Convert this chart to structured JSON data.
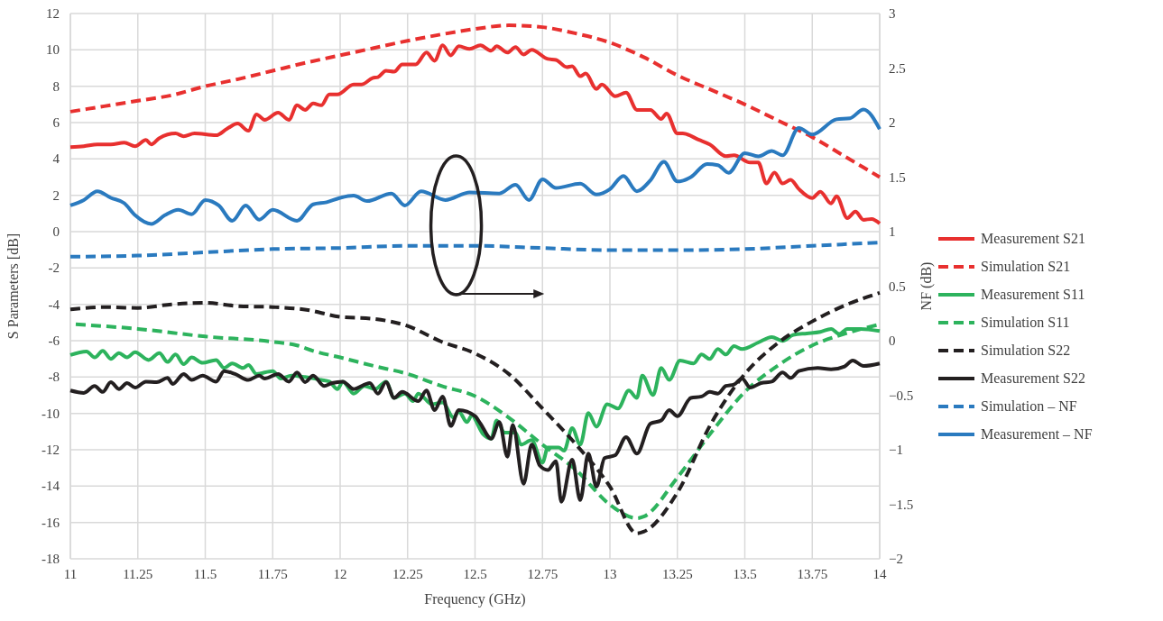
{
  "chart_data": {
    "type": "line",
    "xlabel": "Frequency (GHz)",
    "ylabel": "S Parameters [dB]",
    "y2label": "NF (dB)",
    "grid": true,
    "legend": "right",
    "xlim": [
      11,
      14
    ],
    "xticks": [
      11,
      11.25,
      11.5,
      11.75,
      12,
      12.25,
      12.5,
      12.75,
      13,
      13.25,
      13.5,
      13.75,
      14
    ],
    "ylim": [
      -18,
      12
    ],
    "yticks": [
      -18,
      -16,
      -14,
      -12,
      -10,
      -8,
      -6,
      -4,
      -2,
      0,
      2,
      4,
      6,
      8,
      10,
      12
    ],
    "y2lim": [
      -2,
      3
    ],
    "y2ticks": [
      {
        "value": -2,
        "label": "−2"
      },
      {
        "value": -1.5,
        "label": "−1.5"
      },
      {
        "value": -1,
        "label": "−1"
      },
      {
        "value": -0.5,
        "label": "−0.5"
      },
      0,
      0.5,
      1,
      1.5,
      2,
      2.5,
      3
    ],
    "series": [
      {
        "name": "Measurement S21",
        "color": "#e8302f",
        "line_style": "solid",
        "x": [
          11.0,
          11.05,
          11.1,
          11.15,
          11.2,
          11.24,
          11.28,
          11.3,
          11.33,
          11.39,
          11.42,
          11.46,
          11.54,
          11.58,
          11.62,
          11.66,
          11.69,
          11.72,
          11.77,
          11.81,
          11.84,
          11.87,
          11.9,
          11.93,
          11.96,
          11.99,
          12.05,
          12.08,
          12.12,
          12.14,
          12.17,
          12.2,
          12.23,
          12.28,
          12.32,
          12.35,
          12.38,
          12.41,
          12.44,
          12.48,
          12.52,
          12.56,
          12.58,
          12.62,
          12.65,
          12.68,
          12.71,
          12.77,
          12.8,
          12.84,
          12.86,
          12.89,
          12.91,
          12.95,
          12.97,
          13.02,
          13.06,
          13.1,
          13.15,
          13.19,
          13.21,
          13.25,
          13.27,
          13.33,
          13.37,
          13.43,
          13.46,
          13.52,
          13.55,
          13.58,
          13.61,
          13.64,
          13.67,
          13.7,
          13.75,
          13.78,
          13.82,
          13.84,
          13.88,
          13.91,
          13.94,
          13.97,
          14.0
        ],
        "values": [
          4.65,
          4.7,
          4.8,
          4.8,
          4.9,
          4.7,
          5.05,
          4.8,
          5.15,
          5.4,
          5.25,
          5.4,
          5.3,
          5.65,
          5.95,
          5.55,
          6.45,
          6.15,
          6.55,
          6.15,
          6.95,
          6.7,
          7.05,
          6.95,
          7.55,
          7.55,
          8.1,
          8.1,
          8.45,
          8.5,
          8.85,
          8.8,
          9.2,
          9.2,
          9.85,
          9.4,
          10.25,
          9.7,
          10.2,
          10.05,
          10.25,
          9.95,
          10.2,
          9.85,
          10.15,
          9.75,
          10.0,
          9.5,
          9.45,
          9.05,
          9.1,
          8.55,
          8.7,
          7.85,
          8.1,
          7.45,
          7.65,
          6.7,
          6.7,
          6.2,
          6.5,
          5.4,
          5.4,
          5.05,
          4.8,
          4.15,
          4.2,
          3.8,
          3.8,
          2.65,
          3.25,
          2.65,
          2.85,
          2.35,
          1.85,
          2.2,
          1.55,
          1.95,
          0.75,
          1.1,
          0.65,
          0.7,
          0.45
        ]
      },
      {
        "name": "Simulation S21",
        "color": "#e8302f",
        "line_style": "dashed",
        "x": [
          11,
          11.125,
          11.25,
          11.375,
          11.5,
          11.625,
          11.75,
          11.875,
          12,
          12.125,
          12.25,
          12.375,
          12.5,
          12.625,
          12.75,
          12.875,
          13,
          13.125,
          13.25,
          13.375,
          13.5,
          13.625,
          13.75,
          13.875,
          14
        ],
        "values": [
          6.6,
          6.9,
          7.2,
          7.5,
          8.0,
          8.4,
          8.85,
          9.3,
          9.7,
          10.1,
          10.5,
          10.85,
          11.15,
          11.35,
          11.25,
          10.9,
          10.4,
          9.6,
          8.6,
          7.8,
          7.0,
          6.1,
          5.2,
          4.1,
          3.0
        ]
      },
      {
        "name": "Measurement S11",
        "color": "#2db35d",
        "line_style": "solid",
        "x": [
          11.0,
          11.06,
          11.09,
          11.12,
          11.15,
          11.18,
          11.21,
          11.24,
          11.29,
          11.33,
          11.36,
          11.39,
          11.42,
          11.45,
          11.49,
          11.54,
          11.57,
          11.6,
          11.64,
          11.66,
          11.69,
          11.75,
          11.78,
          11.82,
          11.87,
          11.93,
          11.96,
          11.99,
          12.01,
          12.05,
          12.09,
          12.13,
          12.17,
          12.2,
          12.24,
          12.27,
          12.29,
          12.34,
          12.38,
          12.42,
          12.44,
          12.47,
          12.49,
          12.5,
          12.53,
          12.56,
          12.58,
          12.61,
          12.65,
          12.67,
          12.71,
          12.75,
          12.77,
          12.81,
          12.83,
          12.86,
          12.89,
          12.92,
          12.95,
          12.99,
          13.03,
          13.07,
          13.1,
          13.12,
          13.16,
          13.19,
          13.22,
          13.26,
          13.31,
          13.34,
          13.37,
          13.4,
          13.43,
          13.46,
          13.49,
          13.55,
          13.6,
          13.64,
          13.68,
          13.73,
          13.78,
          13.82,
          13.85,
          13.88,
          13.93,
          14.0
        ],
        "values": [
          -6.79,
          -6.59,
          -6.92,
          -6.56,
          -7.0,
          -6.68,
          -6.92,
          -6.63,
          -7.06,
          -6.68,
          -7.17,
          -6.76,
          -7.29,
          -6.92,
          -7.22,
          -7.06,
          -7.5,
          -7.25,
          -7.5,
          -7.34,
          -7.83,
          -7.67,
          -8.08,
          -7.92,
          -8.0,
          -8.16,
          -8.25,
          -8.66,
          -8.25,
          -8.91,
          -8.49,
          -8.66,
          -8.25,
          -9.15,
          -8.91,
          -9.32,
          -8.91,
          -9.49,
          -9.4,
          -10.23,
          -9.9,
          -10.48,
          -10.06,
          -10.31,
          -11.14,
          -11.39,
          -10.39,
          -11.06,
          -11.06,
          -11.72,
          -11.47,
          -12.71,
          -11.88,
          -11.88,
          -12.05,
          -10.81,
          -11.72,
          -9.98,
          -10.73,
          -9.49,
          -9.73,
          -8.74,
          -9.15,
          -7.92,
          -8.99,
          -7.5,
          -8.16,
          -7.09,
          -7.25,
          -6.76,
          -7.01,
          -6.46,
          -6.76,
          -6.3,
          -6.46,
          -6.1,
          -5.8,
          -6.01,
          -5.68,
          -5.6,
          -5.52,
          -5.35,
          -5.63,
          -5.35,
          -5.35,
          -5.47
        ]
      },
      {
        "name": "Simulation S11",
        "color": "#2db35d",
        "line_style": "dashed",
        "x": [
          11.02,
          11.25,
          11.5,
          11.75,
          11.84,
          11.9,
          12.0,
          12.125,
          12.25,
          12.375,
          12.5,
          12.625,
          12.75,
          12.875,
          13.0,
          13.1,
          13.125,
          13.25,
          13.375,
          13.5,
          13.625,
          13.75,
          13.875,
          14
        ],
        "values": [
          -5.1,
          -5.35,
          -5.77,
          -6.06,
          -6.26,
          -6.56,
          -6.92,
          -7.39,
          -7.83,
          -8.49,
          -9.05,
          -10.23,
          -11.72,
          -13.12,
          -15.02,
          -15.77,
          -15.68,
          -13.53,
          -11.06,
          -8.82,
          -7.34,
          -6.26,
          -5.6,
          -5.1
        ]
      },
      {
        "name": "Simulation S22",
        "color": "#231f20",
        "line_style": "dashed",
        "x": [
          11,
          11.125,
          11.25,
          11.375,
          11.5,
          11.625,
          11.75,
          11.875,
          12,
          12.125,
          12.25,
          12.375,
          12.5,
          12.625,
          12.75,
          12.875,
          13.0,
          13.1,
          13.125,
          13.25,
          13.375,
          13.5,
          13.625,
          13.75,
          13.875,
          14
        ],
        "values": [
          -4.28,
          -4.15,
          -4.2,
          -4.0,
          -3.92,
          -4.1,
          -4.15,
          -4.3,
          -4.69,
          -4.8,
          -5.19,
          -6.05,
          -6.7,
          -7.83,
          -9.73,
          -11.72,
          -14.03,
          -16.6,
          -16.51,
          -14.36,
          -10.56,
          -7.83,
          -6.1,
          -4.94,
          -4.03,
          -3.37
        ]
      },
      {
        "name": "Measurement S22",
        "color": "#231f20",
        "line_style": "solid",
        "x": [
          11.0,
          11.05,
          11.09,
          11.12,
          11.15,
          11.18,
          11.21,
          11.24,
          11.28,
          11.32,
          11.36,
          11.38,
          11.42,
          11.45,
          11.49,
          11.54,
          11.57,
          11.61,
          11.66,
          11.7,
          11.72,
          11.77,
          11.81,
          11.84,
          11.87,
          11.9,
          11.94,
          11.97,
          12.01,
          12.05,
          12.11,
          12.14,
          12.17,
          12.2,
          12.23,
          12.29,
          12.32,
          12.35,
          12.38,
          12.41,
          12.44,
          12.5,
          12.52,
          12.56,
          12.59,
          12.62,
          12.64,
          12.68,
          12.71,
          12.74,
          12.77,
          12.8,
          12.82,
          12.86,
          12.89,
          12.92,
          12.95,
          12.98,
          13.02,
          13.06,
          13.1,
          13.15,
          13.19,
          13.22,
          13.25,
          13.3,
          13.34,
          13.37,
          13.4,
          13.43,
          13.46,
          13.49,
          13.52,
          13.56,
          13.6,
          13.64,
          13.67,
          13.7,
          13.77,
          13.82,
          13.87,
          13.9,
          13.94,
          14.0
        ],
        "values": [
          -8.74,
          -8.87,
          -8.49,
          -8.82,
          -8.28,
          -8.66,
          -8.33,
          -8.58,
          -8.25,
          -8.28,
          -8.05,
          -8.38,
          -7.83,
          -8.16,
          -7.92,
          -8.25,
          -7.67,
          -7.83,
          -8.16,
          -7.92,
          -8.08,
          -7.83,
          -8.25,
          -7.75,
          -8.28,
          -7.92,
          -8.49,
          -8.33,
          -8.25,
          -8.66,
          -8.33,
          -8.91,
          -8.28,
          -9.15,
          -8.82,
          -9.32,
          -8.74,
          -9.82,
          -9.07,
          -10.69,
          -9.82,
          -10.15,
          -10.56,
          -11.39,
          -10.48,
          -12.38,
          -10.64,
          -13.87,
          -11.72,
          -12.87,
          -13.12,
          -12.63,
          -14.86,
          -12.54,
          -14.77,
          -12.21,
          -14.03,
          -12.46,
          -12.3,
          -11.3,
          -12.21,
          -10.56,
          -10.39,
          -9.82,
          -10.15,
          -9.15,
          -9.07,
          -8.82,
          -8.91,
          -8.49,
          -8.41,
          -8.08,
          -8.58,
          -8.33,
          -8.25,
          -7.75,
          -8.05,
          -7.67,
          -7.5,
          -7.58,
          -7.42,
          -7.09,
          -7.39,
          -7.25
        ]
      },
      {
        "name": "Simulation – NF",
        "color": "#2a7abf",
        "line_style": "dashed",
        "axis": "y2",
        "x": [
          11,
          11.25,
          11.5,
          11.75,
          12,
          12.25,
          12.5,
          12.75,
          13,
          13.25,
          13.5,
          13.75,
          14
        ],
        "values": [
          0.77,
          0.78,
          0.81,
          0.84,
          0.85,
          0.87,
          0.87,
          0.85,
          0.83,
          0.83,
          0.84,
          0.87,
          0.9
        ]
      },
      {
        "name": "Measurement – NF",
        "color": "#2a7abf",
        "line_style": "solid",
        "axis": "y2",
        "x": [
          11.0,
          11.05,
          11.1,
          11.15,
          11.2,
          11.24,
          11.3,
          11.35,
          11.4,
          11.45,
          11.5,
          11.55,
          11.6,
          11.65,
          11.7,
          11.75,
          11.84,
          11.9,
          11.95,
          12.0,
          12.05,
          12.1,
          12.19,
          12.24,
          12.3,
          12.39,
          12.48,
          12.59,
          12.65,
          12.7,
          12.75,
          12.8,
          12.89,
          12.95,
          13.0,
          13.05,
          13.1,
          13.15,
          13.2,
          13.25,
          13.3,
          13.36,
          13.4,
          13.44,
          13.5,
          13.55,
          13.6,
          13.64,
          13.7,
          13.75,
          13.84,
          13.89,
          13.94,
          14.0
        ],
        "values": [
          1.24,
          1.29,
          1.37,
          1.31,
          1.26,
          1.15,
          1.07,
          1.15,
          1.2,
          1.16,
          1.29,
          1.24,
          1.1,
          1.24,
          1.11,
          1.2,
          1.1,
          1.25,
          1.27,
          1.31,
          1.33,
          1.28,
          1.35,
          1.24,
          1.37,
          1.29,
          1.36,
          1.35,
          1.43,
          1.29,
          1.48,
          1.4,
          1.44,
          1.34,
          1.39,
          1.51,
          1.37,
          1.47,
          1.64,
          1.46,
          1.5,
          1.62,
          1.61,
          1.54,
          1.72,
          1.69,
          1.74,
          1.7,
          1.95,
          1.89,
          2.03,
          2.04,
          2.12,
          1.94
        ]
      }
    ]
  }
}
